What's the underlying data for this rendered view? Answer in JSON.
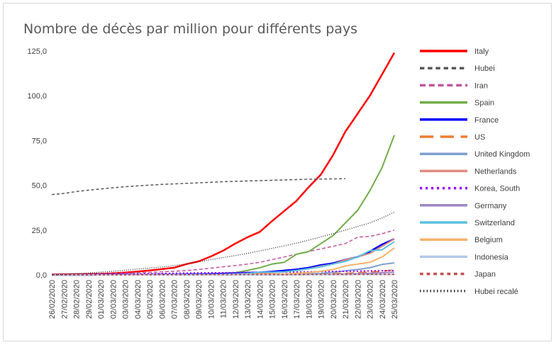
{
  "chart_data": {
    "type": "line",
    "title": "Nombre de décès par million pour différents pays",
    "xlabel": "",
    "ylabel": "",
    "ylim": [
      0,
      125
    ],
    "yticks": [
      "0,0",
      "25,0",
      "50,0",
      "75,0",
      "100,0",
      "125,0"
    ],
    "grid": false,
    "legend_position": "right",
    "categories": [
      "26/02/2020",
      "27/02/2020",
      "28/02/2020",
      "29/02/2020",
      "01/03/2020",
      "02/03/2020",
      "03/03/2020",
      "04/03/2020",
      "05/03/2020",
      "06/03/2020",
      "07/03/2020",
      "08/03/2020",
      "09/03/2020",
      "10/03/2020",
      "11/03/2020",
      "12/03/2020",
      "13/03/2020",
      "14/03/2020",
      "15/03/2020",
      "16/03/2020",
      "17/03/2020",
      "18/03/2020",
      "19/03/2020",
      "20/03/2020",
      "21/03/2020",
      "22/03/2020",
      "23/03/2020",
      "24/03/2020",
      "25/03/2020"
    ],
    "series": [
      {
        "name": "Italy",
        "color": "#ff0000",
        "dash": "solid",
        "width": 2.5,
        "values": [
          0.2,
          0.3,
          0.4,
          0.5,
          0.6,
          0.9,
          1.3,
          1.8,
          2.5,
          3.2,
          4.0,
          6.0,
          7.5,
          10.3,
          13.5,
          17.5,
          21.0,
          24.0,
          30.0,
          35.7,
          41.3,
          49.0,
          56.0,
          67.0,
          80.0,
          90.0,
          100.0,
          112.0,
          124.0
        ]
      },
      {
        "name": "Hubei",
        "color": "#595959",
        "dash": "4,3",
        "width": 1.5,
        "values": [
          44.8,
          45.5,
          46.5,
          47.3,
          48.0,
          48.6,
          49.2,
          49.7,
          50.1,
          50.5,
          50.8,
          51.1,
          51.4,
          51.7,
          52.0,
          52.2,
          52.4,
          52.6,
          52.8,
          53.0,
          53.2,
          53.4,
          53.5,
          53.6,
          53.7,
          null,
          null,
          null,
          null
        ]
      },
      {
        "name": "Iran",
        "color": "#c0569b",
        "dash": "5,3",
        "width": 1.5,
        "values": [
          0.0,
          0.1,
          0.2,
          0.4,
          0.6,
          0.8,
          1.0,
          1.2,
          1.4,
          1.7,
          2.0,
          2.4,
          3.0,
          3.7,
          4.5,
          5.2,
          6.0,
          7.0,
          8.5,
          10.0,
          11.5,
          13.0,
          14.5,
          16.0,
          17.5,
          21.0,
          21.5,
          23.0,
          25.0
        ]
      },
      {
        "name": "Spain",
        "color": "#70ad47",
        "dash": "solid",
        "width": 2,
        "values": [
          0,
          0,
          0,
          0,
          0,
          0,
          0,
          0,
          0,
          0,
          0.1,
          0.2,
          0.3,
          0.6,
          0.9,
          1.2,
          2.5,
          4.0,
          6.0,
          7.0,
          11.5,
          13.0,
          17.5,
          22.0,
          29.0,
          36.0,
          47.0,
          60.0,
          78.0
        ]
      },
      {
        "name": "France",
        "color": "#0000ff",
        "dash": "solid",
        "width": 2.5,
        "values": [
          0,
          0,
          0,
          0,
          0.1,
          0.1,
          0.1,
          0.1,
          0.1,
          0.2,
          0.2,
          0.3,
          0.4,
          0.5,
          0.7,
          0.9,
          1.2,
          1.4,
          1.8,
          2.4,
          3.0,
          4.0,
          5.5,
          6.5,
          8.5,
          10.0,
          13.0,
          17.0,
          20.0
        ]
      },
      {
        "name": "US",
        "color": "#ed7d31",
        "dash": "12,6",
        "width": 2,
        "values": [
          0,
          0,
          0,
          0,
          0,
          0,
          0,
          0,
          0,
          0,
          0,
          0,
          0,
          0,
          0,
          0,
          0,
          0.1,
          0.1,
          0.2,
          0.3,
          0.4,
          0.5,
          0.7,
          0.9,
          1.2,
          1.6,
          2.1,
          2.8
        ]
      },
      {
        "name": "United Kingdom",
        "color": "#7f9fcf",
        "dash": "solid",
        "width": 2,
        "values": [
          0,
          0,
          0,
          0,
          0,
          0,
          0,
          0,
          0,
          0,
          0,
          0,
          0,
          0,
          0,
          0,
          0,
          0,
          0.1,
          0.2,
          0.4,
          0.6,
          0.8,
          1.5,
          2.2,
          3.0,
          4.0,
          5.8,
          6.7
        ]
      },
      {
        "name": "Netherlands",
        "color": "#e08a82",
        "dash": "solid",
        "width": 2,
        "values": [
          0,
          0,
          0,
          0,
          0,
          0,
          0,
          0,
          0,
          0,
          0,
          0,
          0,
          0,
          0,
          0.3,
          0.4,
          0.8,
          1.2,
          1.7,
          2.4,
          3.4,
          4.9,
          6.0,
          8.5,
          10.0,
          12.0,
          16.0,
          20.0
        ]
      },
      {
        "name": "Korea, South",
        "color": "#9900ff",
        "dash": "2,3",
        "width": 2,
        "values": [
          0.0,
          0.0,
          0.1,
          0.1,
          0.2,
          0.3,
          0.4,
          0.5,
          0.6,
          0.7,
          0.9,
          1.0,
          1.1,
          1.2,
          1.2,
          1.3,
          1.4,
          1.4,
          1.5,
          1.6,
          1.6,
          1.7,
          1.8,
          1.9,
          2.0,
          2.1,
          2.2,
          2.3,
          2.4
        ]
      },
      {
        "name": "Germany",
        "color": "#9e86c8",
        "dash": "solid",
        "width": 2,
        "values": [
          0,
          0,
          0,
          0,
          0,
          0,
          0,
          0,
          0,
          0,
          0,
          0,
          0,
          0,
          0,
          0,
          0,
          0,
          0,
          0.1,
          0.1,
          0.1,
          0.2,
          0.3,
          0.5,
          0.7,
          0.9,
          1.2,
          1.5
        ]
      },
      {
        "name": "Switzerland",
        "color": "#5bc0de",
        "dash": "solid",
        "width": 2,
        "values": [
          0,
          0,
          0,
          0,
          0,
          0,
          0,
          0,
          0,
          0,
          0.1,
          0.1,
          0.2,
          0.2,
          0.3,
          0.5,
          0.8,
          1.5,
          1.5,
          1.7,
          2.5,
          3.5,
          4.5,
          6.0,
          7.5,
          10.0,
          13.5,
          14.0,
          18.5
        ]
      },
      {
        "name": "Belgium",
        "color": "#f6b26b",
        "dash": "solid",
        "width": 2,
        "values": [
          0,
          0,
          0,
          0,
          0,
          0,
          0,
          0,
          0,
          0,
          0,
          0,
          0,
          0,
          0,
          0.1,
          0.2,
          0.3,
          0.4,
          0.5,
          0.9,
          1.3,
          2.0,
          3.0,
          5.0,
          6.0,
          7.0,
          10.0,
          15.0
        ]
      },
      {
        "name": "Indonesia",
        "color": "#b4c7e7",
        "dash": "solid",
        "width": 2,
        "values": [
          0,
          0,
          0,
          0,
          0,
          0,
          0,
          0,
          0,
          0,
          0,
          0,
          0,
          0,
          0,
          0,
          0,
          0,
          0,
          0,
          0,
          0.1,
          0.1,
          0.1,
          0.1,
          0.2,
          0.2,
          0.2,
          0.2
        ]
      },
      {
        "name": "Japan",
        "color": "#c0504d",
        "dash": "3,3",
        "width": 2,
        "values": [
          0.0,
          0.0,
          0.0,
          0.0,
          0.0,
          0.0,
          0.0,
          0.1,
          0.1,
          0.1,
          0.1,
          0.1,
          0.1,
          0.2,
          0.2,
          0.2,
          0.2,
          0.2,
          0.2,
          0.2,
          0.2,
          0.3,
          0.3,
          0.3,
          0.3,
          0.3,
          0.3,
          0.3,
          0.3
        ]
      },
      {
        "name": "Hubei recalé",
        "color": "#404040",
        "dash": "1,2",
        "width": 1.5,
        "values": [
          0.1,
          0.3,
          0.6,
          1.0,
          1.5,
          2.0,
          2.6,
          3.2,
          3.8,
          4.4,
          5.2,
          6.1,
          7.3,
          8.5,
          9.6,
          10.8,
          12.0,
          13.4,
          14.8,
          16.2,
          17.7,
          19.4,
          21.2,
          23.0,
          25.0,
          27.0,
          29.0,
          31.8,
          35.0
        ]
      }
    ]
  }
}
